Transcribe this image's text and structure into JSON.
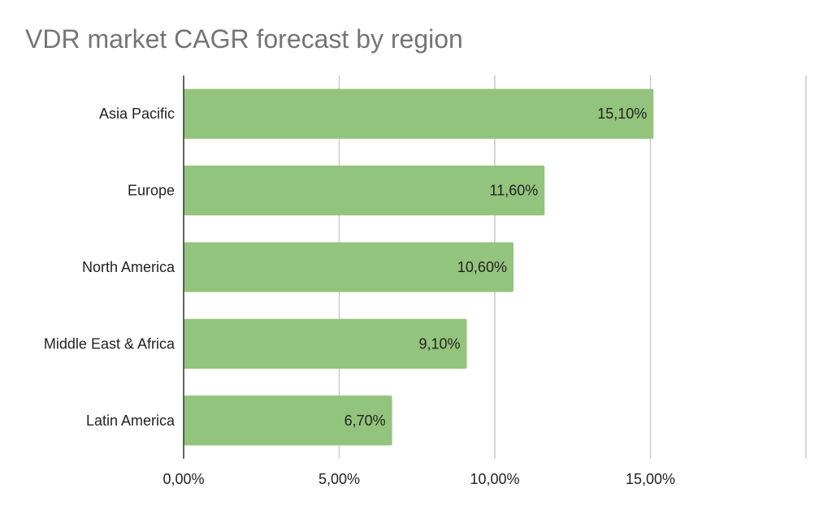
{
  "chart_data": {
    "type": "bar",
    "orientation": "horizontal",
    "title": "VDR market CAGR forecast by region",
    "categories": [
      "Asia Pacific",
      "Europe",
      "North America",
      "Middle East & Africa",
      "Latin America"
    ],
    "values": [
      15.1,
      11.6,
      10.6,
      9.1,
      6.7
    ],
    "data_labels": [
      "15,10%",
      "11,60%",
      "10,60%",
      "9,10%",
      "6,70%"
    ],
    "x_ticks": [
      0,
      5,
      10,
      15,
      20
    ],
    "x_tick_labels": [
      "0,00%",
      "5,00%",
      "10,00%",
      "15,00%",
      ""
    ],
    "xlim": [
      0,
      20
    ],
    "xlabel": "",
    "ylabel": "",
    "grid": true,
    "legend": "none",
    "bar_color": "#93c47d",
    "gridline_color": "#cccccc",
    "axis_color": "#333333"
  }
}
